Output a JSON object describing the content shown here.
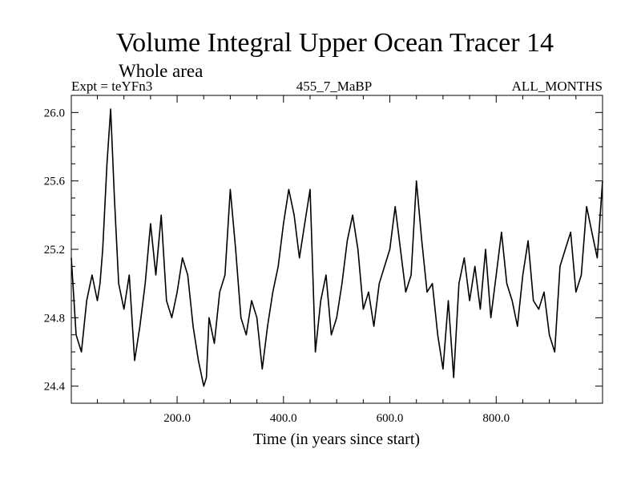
{
  "chart_data": {
    "type": "line",
    "title": "Volume Integral Upper Ocean Tracer 14",
    "subtitle": "Whole area",
    "experiment": "Expt = teYFn3",
    "run_id": "455_7_MaBP",
    "period": "ALL_MONTHS",
    "xlabel": "Time (in years since start)",
    "ylabel": "",
    "xlim": [
      1,
      1000
    ],
    "ylim": [
      24.3,
      26.1
    ],
    "x_ticks": [
      200,
      400,
      600,
      800
    ],
    "x_tick_labels": [
      "200.0",
      "400.0",
      "600.0",
      "800.0"
    ],
    "y_ticks": [
      24.4,
      24.8,
      25.2,
      25.6,
      26.0
    ],
    "y_tick_labels": [
      "24.4",
      "24.8",
      "25.2",
      "25.6",
      "26.0"
    ],
    "grid": false,
    "series": [
      {
        "name": "Volume Integral Upper Ocean Tracer 14",
        "color": "#000000",
        "x": [
          1,
          10,
          20,
          30,
          40,
          50,
          55,
          60,
          68,
          75,
          82,
          90,
          100,
          110,
          120,
          130,
          140,
          150,
          160,
          170,
          180,
          190,
          200,
          210,
          220,
          230,
          240,
          250,
          255,
          260,
          270,
          280,
          290,
          300,
          310,
          320,
          330,
          340,
          350,
          360,
          370,
          380,
          390,
          400,
          410,
          420,
          430,
          440,
          450,
          460,
          470,
          480,
          490,
          500,
          510,
          520,
          530,
          540,
          550,
          560,
          570,
          580,
          590,
          600,
          610,
          620,
          630,
          640,
          650,
          660,
          670,
          680,
          690,
          700,
          710,
          720,
          730,
          740,
          750,
          760,
          770,
          780,
          790,
          800,
          810,
          820,
          830,
          840,
          850,
          860,
          870,
          880,
          890,
          900,
          910,
          920,
          930,
          940,
          950,
          960,
          970,
          980,
          990,
          1000
        ],
        "values": [
          25.15,
          24.7,
          24.6,
          24.9,
          25.05,
          24.9,
          25.0,
          25.2,
          25.7,
          26.02,
          25.5,
          25.0,
          24.85,
          25.05,
          24.55,
          24.75,
          25.0,
          25.35,
          25.05,
          25.4,
          24.9,
          24.8,
          24.95,
          25.15,
          25.05,
          24.75,
          24.55,
          24.4,
          24.45,
          24.8,
          24.65,
          24.95,
          25.05,
          25.55,
          25.2,
          24.8,
          24.7,
          24.9,
          24.8,
          24.5,
          24.75,
          24.95,
          25.1,
          25.35,
          25.55,
          25.4,
          25.15,
          25.35,
          25.55,
          24.6,
          24.9,
          25.05,
          24.7,
          24.8,
          25.0,
          25.25,
          25.4,
          25.2,
          24.85,
          24.95,
          24.75,
          25.0,
          25.1,
          25.2,
          25.45,
          25.2,
          24.95,
          25.05,
          25.6,
          25.25,
          24.95,
          25.0,
          24.7,
          24.5,
          24.9,
          24.45,
          25.0,
          25.15,
          24.9,
          25.1,
          24.85,
          25.2,
          24.8,
          25.05,
          25.3,
          25.0,
          24.9,
          24.75,
          25.05,
          25.25,
          24.9,
          24.85,
          24.95,
          24.7,
          24.6,
          25.1,
          25.2,
          25.3,
          24.95,
          25.05,
          25.45,
          25.3,
          25.15,
          25.6
        ]
      }
    ]
  }
}
